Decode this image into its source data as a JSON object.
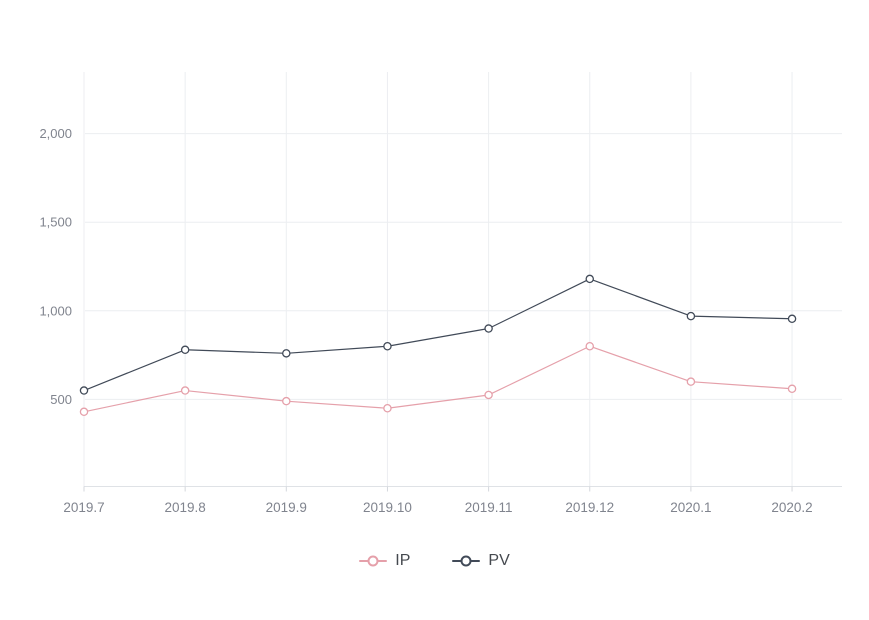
{
  "page": {
    "background": "#ffffff"
  },
  "chart_data": {
    "type": "line",
    "title": "",
    "xlabel": "",
    "ylabel": "",
    "categories": [
      "2019.7",
      "2019.8",
      "2019.9",
      "2019.10",
      "2019.11",
      "2019.12",
      "2020.1",
      "2020.2"
    ],
    "series": [
      {
        "name": "IP",
        "color": "#e5a0aa",
        "values": [
          430,
          550,
          490,
          450,
          525,
          800,
          600,
          560
        ]
      },
      {
        "name": "PV",
        "color": "#414a58",
        "values": [
          550,
          780,
          760,
          800,
          900,
          1180,
          970,
          955
        ]
      }
    ],
    "y_ticks": [
      500,
      1000,
      1500,
      2000
    ],
    "y_tick_labels": [
      "500",
      "1,000",
      "1,500",
      "2,000"
    ],
    "ylim": [
      0,
      2350
    ],
    "grid": true,
    "legend_position": "bottom",
    "marker": "hollow-circle"
  },
  "legend": {
    "items": [
      {
        "label": "IP"
      },
      {
        "label": "PV"
      }
    ]
  },
  "colors": {
    "grid_line": "#eceef1",
    "axis_line": "#dfe2e6",
    "tick_mark": "#d4d7dc",
    "tick_label": "#80848e",
    "legend_text": "#45494f",
    "marker_fill": "#ffffff"
  }
}
